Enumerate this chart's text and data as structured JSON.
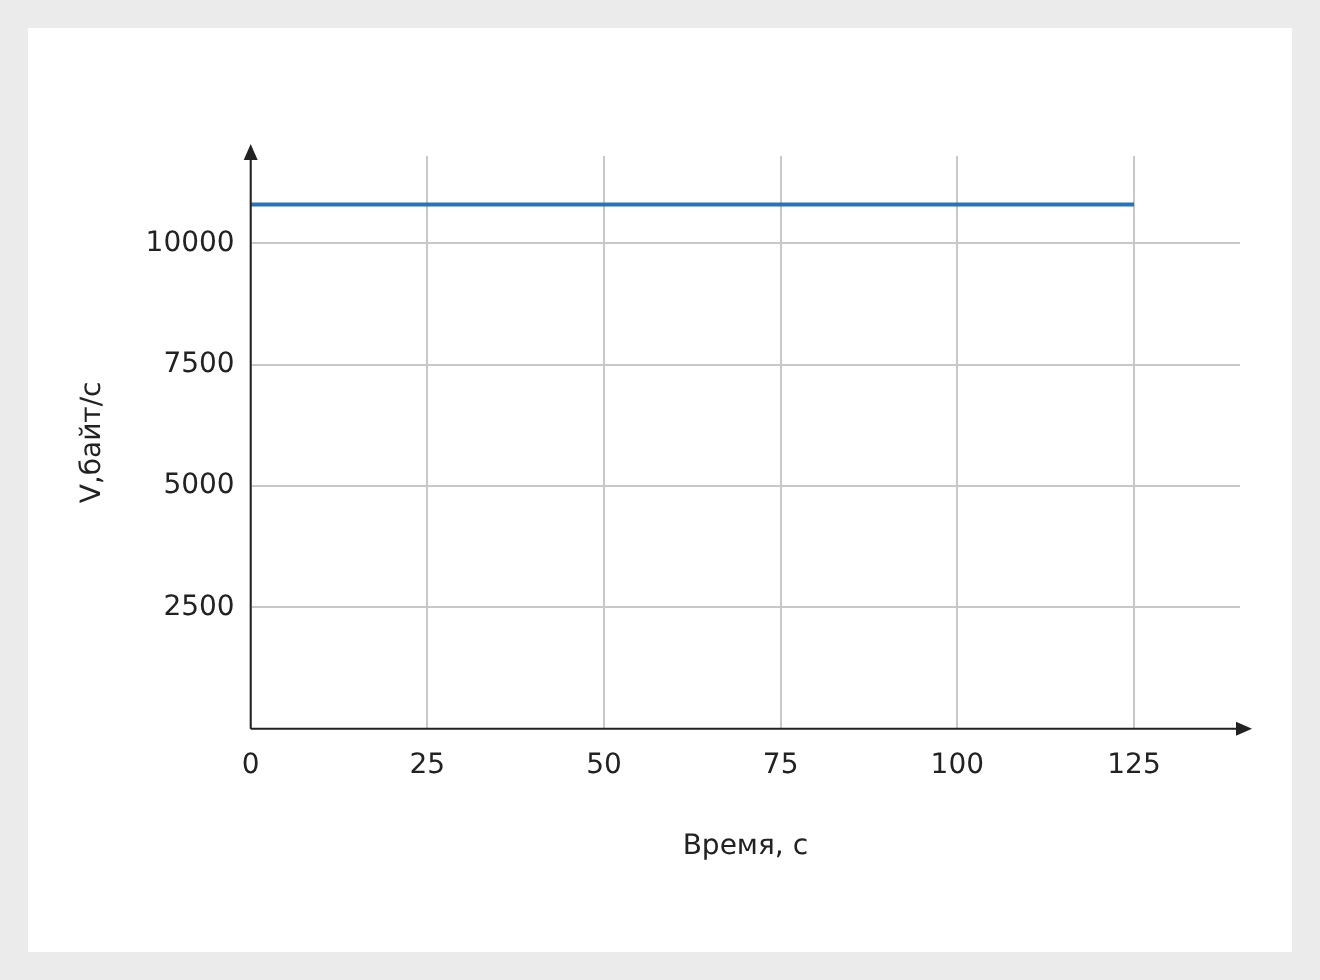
{
  "chart_data": {
    "type": "line",
    "xlabel": "Время, с",
    "ylabel": "V,байт/с",
    "x": [
      0,
      125
    ],
    "series": [
      {
        "color": "#2a74b5",
        "values": [
          10800,
          10800
        ]
      }
    ],
    "xlim": [
      0,
      140
    ],
    "ylim": [
      0,
      11800
    ],
    "xticks": [
      0,
      25,
      50,
      75,
      100,
      125
    ],
    "yticks": [
      2500,
      5000,
      7500,
      10000
    ],
    "grid": true,
    "marker": "none",
    "line_style": "solid"
  }
}
